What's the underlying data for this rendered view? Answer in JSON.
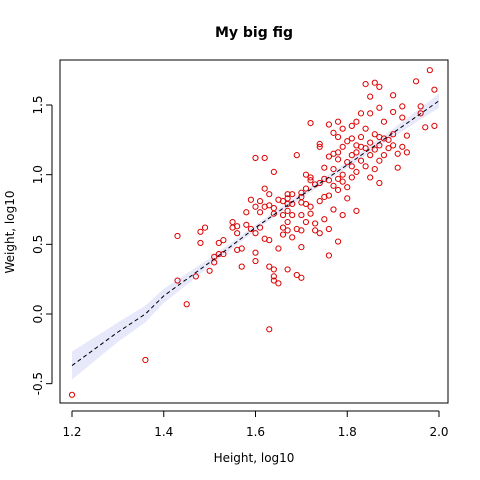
{
  "chart_data": {
    "type": "scatter",
    "title": "My big fig",
    "xlabel": "Height, log10",
    "ylabel": "Weight, log10",
    "xlim": [
      1.2,
      2.0
    ],
    "ylim": [
      -0.5,
      1.5
    ],
    "xticks": [
      1.2,
      1.4,
      1.6,
      1.8,
      2.0
    ],
    "xtick_labels": [
      "1.2",
      "1.4",
      "1.6",
      "1.8",
      "2.0"
    ],
    "yticks": [
      -0.5,
      0.0,
      0.5,
      1.0,
      1.5
    ],
    "ytick_labels": [
      "-0.5",
      "0.0",
      "0.5",
      "1.0",
      "1.5"
    ],
    "point_color": "#dd0000",
    "band_color": "#e8e8fb",
    "trend_color": "#000000",
    "points": [
      [
        1.2,
        -0.58
      ],
      [
        1.36,
        -0.33
      ],
      [
        1.43,
        0.56
      ],
      [
        1.43,
        0.24
      ],
      [
        1.45,
        0.07
      ],
      [
        1.47,
        0.27
      ],
      [
        1.48,
        0.59
      ],
      [
        1.48,
        0.51
      ],
      [
        1.49,
        0.62
      ],
      [
        1.5,
        0.31
      ],
      [
        1.51,
        0.41
      ],
      [
        1.51,
        0.37
      ],
      [
        1.52,
        0.51
      ],
      [
        1.52,
        0.43
      ],
      [
        1.53,
        0.43
      ],
      [
        1.53,
        0.53
      ],
      [
        1.55,
        0.62
      ],
      [
        1.55,
        0.66
      ],
      [
        1.56,
        0.63
      ],
      [
        1.56,
        0.58
      ],
      [
        1.56,
        0.46
      ],
      [
        1.57,
        0.34
      ],
      [
        1.57,
        0.47
      ],
      [
        1.58,
        0.64
      ],
      [
        1.58,
        0.73
      ],
      [
        1.59,
        0.82
      ],
      [
        1.59,
        0.61
      ],
      [
        1.6,
        1.12
      ],
      [
        1.6,
        0.77
      ],
      [
        1.6,
        0.58
      ],
      [
        1.6,
        0.44
      ],
      [
        1.6,
        0.38
      ],
      [
        1.61,
        0.81
      ],
      [
        1.61,
        0.73
      ],
      [
        1.61,
        0.62
      ],
      [
        1.62,
        0.77
      ],
      [
        1.62,
        0.9
      ],
      [
        1.62,
        1.12
      ],
      [
        1.62,
        0.54
      ],
      [
        1.63,
        0.86
      ],
      [
        1.63,
        0.78
      ],
      [
        1.63,
        0.53
      ],
      [
        1.63,
        0.34
      ],
      [
        1.63,
        -0.11
      ],
      [
        1.64,
        1.02
      ],
      [
        1.64,
        0.76
      ],
      [
        1.64,
        0.72
      ],
      [
        1.64,
        0.32
      ],
      [
        1.64,
        0.27
      ],
      [
        1.64,
        0.24
      ],
      [
        1.65,
        0.22
      ],
      [
        1.65,
        0.47
      ],
      [
        1.65,
        0.82
      ],
      [
        1.66,
        0.81
      ],
      [
        1.66,
        0.71
      ],
      [
        1.66,
        0.62
      ],
      [
        1.66,
        0.57
      ],
      [
        1.67,
        0.86
      ],
      [
        1.67,
        0.83
      ],
      [
        1.67,
        0.79
      ],
      [
        1.67,
        0.74
      ],
      [
        1.67,
        0.66
      ],
      [
        1.67,
        0.6
      ],
      [
        1.67,
        0.32
      ],
      [
        1.68,
        0.86
      ],
      [
        1.68,
        0.79
      ],
      [
        1.68,
        0.71
      ],
      [
        1.68,
        0.55
      ],
      [
        1.69,
        0.61
      ],
      [
        1.69,
        0.28
      ],
      [
        1.69,
        1.14
      ],
      [
        1.7,
        0.87
      ],
      [
        1.7,
        0.84
      ],
      [
        1.7,
        0.8
      ],
      [
        1.7,
        0.71
      ],
      [
        1.7,
        0.6
      ],
      [
        1.7,
        0.48
      ],
      [
        1.7,
        0.26
      ],
      [
        1.71,
        1.0
      ],
      [
        1.71,
        0.9
      ],
      [
        1.71,
        0.79
      ],
      [
        1.71,
        0.66
      ],
      [
        1.72,
        1.37
      ],
      [
        1.72,
        0.98
      ],
      [
        1.72,
        0.96
      ],
      [
        1.72,
        0.77
      ],
      [
        1.72,
        0.72
      ],
      [
        1.73,
        0.93
      ],
      [
        1.73,
        0.65
      ],
      [
        1.73,
        0.6
      ],
      [
        1.74,
        1.22
      ],
      [
        1.74,
        1.2
      ],
      [
        1.74,
        0.94
      ],
      [
        1.74,
        0.81
      ],
      [
        1.74,
        0.58
      ],
      [
        1.75,
        1.05
      ],
      [
        1.75,
        0.97
      ],
      [
        1.75,
        0.84
      ],
      [
        1.75,
        0.68
      ],
      [
        1.76,
        1.36
      ],
      [
        1.76,
        1.13
      ],
      [
        1.76,
        0.96
      ],
      [
        1.76,
        0.85
      ],
      [
        1.76,
        0.61
      ],
      [
        1.76,
        0.42
      ],
      [
        1.77,
        1.3
      ],
      [
        1.77,
        1.15
      ],
      [
        1.77,
        1.04
      ],
      [
        1.77,
        0.92
      ],
      [
        1.77,
        0.75
      ],
      [
        1.78,
        1.38
      ],
      [
        1.78,
        1.27
      ],
      [
        1.78,
        1.16
      ],
      [
        1.78,
        1.11
      ],
      [
        1.78,
        0.97
      ],
      [
        1.78,
        0.89
      ],
      [
        1.78,
        0.52
      ],
      [
        1.79,
        1.33
      ],
      [
        1.79,
        1.2
      ],
      [
        1.79,
        1.0
      ],
      [
        1.79,
        0.95
      ],
      [
        1.79,
        0.71
      ],
      [
        1.8,
        1.24
      ],
      [
        1.8,
        1.09
      ],
      [
        1.8,
        0.91
      ],
      [
        1.8,
        0.83
      ],
      [
        1.81,
        1.35
      ],
      [
        1.81,
        1.26
      ],
      [
        1.81,
        1.14
      ],
      [
        1.81,
        1.06
      ],
      [
        1.81,
        0.98
      ],
      [
        1.82,
        1.38
      ],
      [
        1.82,
        1.21
      ],
      [
        1.82,
        1.16
      ],
      [
        1.82,
        1.02
      ],
      [
        1.82,
        0.74
      ],
      [
        1.83,
        1.44
      ],
      [
        1.83,
        1.27
      ],
      [
        1.83,
        1.2
      ],
      [
        1.83,
        1.1
      ],
      [
        1.84,
        1.65
      ],
      [
        1.84,
        1.33
      ],
      [
        1.84,
        1.19
      ],
      [
        1.84,
        1.06
      ],
      [
        1.85,
        1.56
      ],
      [
        1.85,
        1.44
      ],
      [
        1.85,
        1.23
      ],
      [
        1.85,
        1.14
      ],
      [
        1.85,
        0.98
      ],
      [
        1.86,
        1.66
      ],
      [
        1.86,
        1.29
      ],
      [
        1.86,
        1.18
      ],
      [
        1.86,
        1.04
      ],
      [
        1.87,
        1.63
      ],
      [
        1.87,
        1.48
      ],
      [
        1.87,
        1.27
      ],
      [
        1.87,
        1.21
      ],
      [
        1.87,
        1.1
      ],
      [
        1.87,
        0.94
      ],
      [
        1.88,
        1.38
      ],
      [
        1.88,
        1.26
      ],
      [
        1.88,
        1.14
      ],
      [
        1.89,
        1.25
      ],
      [
        1.89,
        1.19
      ],
      [
        1.9,
        1.57
      ],
      [
        1.9,
        1.45
      ],
      [
        1.9,
        1.29
      ],
      [
        1.9,
        1.21
      ],
      [
        1.91,
        1.15
      ],
      [
        1.91,
        1.05
      ],
      [
        1.92,
        1.49
      ],
      [
        1.92,
        1.41
      ],
      [
        1.92,
        1.2
      ],
      [
        1.93,
        1.28
      ],
      [
        1.93,
        1.16
      ],
      [
        1.95,
        1.67
      ],
      [
        1.96,
        1.49
      ],
      [
        1.96,
        1.44
      ],
      [
        1.97,
        1.34
      ],
      [
        1.98,
        1.75
      ],
      [
        1.99,
        1.61
      ],
      [
        1.99,
        1.35
      ]
    ],
    "trend": {
      "x": [
        1.2,
        1.3,
        1.36,
        1.4,
        1.5,
        1.6,
        1.7,
        1.8,
        1.9,
        2.0
      ],
      "y": [
        -0.37,
        -0.13,
        0.0,
        0.13,
        0.37,
        0.62,
        0.85,
        1.07,
        1.3,
        1.53
      ],
      "band": [
        0.1,
        0.07,
        0.06,
        0.05,
        0.03,
        0.02,
        0.02,
        0.02,
        0.03,
        0.05
      ]
    }
  }
}
